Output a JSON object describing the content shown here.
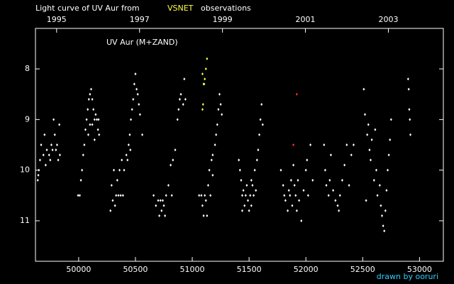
{
  "chart_data": {
    "type": "scatter",
    "title": "Light curve of UV Aur from",
    "title_highlight": "VSNET",
    "title_end": "observations",
    "annotation": "UV Aur (M+ZAND)",
    "credit": "drawn by ooruri",
    "xlim": [
      49620,
      53210
    ],
    "ylim": [
      7.2,
      11.8
    ],
    "y_inverted": true,
    "xticks": [
      50000,
      50500,
      51000,
      51500,
      52000,
      52500,
      53000
    ],
    "yticks": [
      8,
      9,
      10,
      11
    ],
    "x2ticks": [
      {
        "value": 49806,
        "label": "1995"
      },
      {
        "value": 50536,
        "label": "1997"
      },
      {
        "value": 51266,
        "label": "1999"
      },
      {
        "value": 51996,
        "label": "2001"
      },
      {
        "value": 52726,
        "label": "2003"
      }
    ],
    "series": [
      {
        "color": "#ffffff",
        "x": [
          49640,
          49650,
          49660,
          49670,
          49690,
          49700,
          49720,
          49740,
          49760,
          49780,
          49790,
          49800,
          49820,
          49830,
          49835,
          49645,
          49710,
          49750,
          49770,
          49810,
          49995,
          50010,
          50020,
          50030,
          50040,
          50050,
          50060,
          50070,
          50080,
          50090,
          50100,
          50110,
          50120,
          50130,
          50140,
          50150,
          50160,
          50170,
          50175,
          50180,
          50100,
          50120,
          50140,
          50085,
          50280,
          50290,
          50300,
          50310,
          50320,
          50330,
          50340,
          50350,
          50360,
          50370,
          50380,
          50390,
          50400,
          50420,
          50440,
          50450,
          50460,
          50470,
          50480,
          50490,
          50500,
          50510,
          50520,
          50530,
          50540,
          50560,
          50430,
          50455,
          50660,
          50680,
          50700,
          50710,
          50720,
          50730,
          50740,
          50750,
          50770,
          50790,
          50810,
          50830,
          50850,
          50870,
          50880,
          50890,
          50900,
          50920,
          50930,
          50940,
          50820,
          50760,
          51060,
          51080,
          51090,
          51100,
          51110,
          51120,
          51130,
          51140,
          51150,
          51160,
          51170,
          51180,
          51200,
          51210,
          51220,
          51230,
          51240,
          51250,
          51260,
          51180,
          51410,
          51420,
          51430,
          51440,
          51450,
          51460,
          51470,
          51480,
          51490,
          51500,
          51510,
          51520,
          51530,
          51540,
          51550,
          51560,
          51570,
          51580,
          51590,
          51600,
          51610,
          51620,
          51440,
          51520,
          51780,
          51800,
          51810,
          51820,
          51840,
          51850,
          51860,
          51870,
          51880,
          51900,
          51910,
          51920,
          51930,
          51940,
          51960,
          51980,
          52000,
          52010,
          52020,
          52040,
          52060,
          51890,
          52160,
          52170,
          52180,
          52200,
          52210,
          52220,
          52240,
          52260,
          52280,
          52290,
          52300,
          52320,
          52340,
          52360,
          52380,
          52400,
          52420,
          52510,
          52520,
          52540,
          52550,
          52560,
          52570,
          52580,
          52600,
          52620,
          52630,
          52650,
          52660,
          52670,
          52680,
          52690,
          52700,
          52710,
          52720,
          52730,
          52740,
          52750,
          52530,
          52610,
          52900,
          52910,
          52920,
          52905,
          52915
        ],
        "values": [
          10.2,
          10.0,
          9.8,
          9.5,
          9.7,
          9.3,
          9.6,
          9.7,
          9.5,
          9.0,
          9.3,
          9.6,
          9.8,
          9.1,
          9.7,
          10.1,
          9.9,
          9.8,
          9.6,
          9.5,
          10.5,
          10.5,
          10.2,
          10.0,
          9.7,
          9.5,
          9.2,
          9.0,
          8.8,
          8.6,
          8.5,
          8.4,
          8.6,
          8.8,
          9.0,
          8.9,
          9.0,
          9.2,
          9.0,
          9.3,
          9.1,
          9.1,
          9.4,
          9.3,
          10.8,
          10.3,
          10.6,
          10.0,
          10.7,
          10.5,
          10.2,
          10.5,
          10.0,
          10.5,
          9.8,
          10.5,
          10.0,
          9.7,
          9.5,
          9.3,
          9.0,
          8.8,
          8.6,
          8.3,
          8.1,
          8.4,
          8.5,
          8.7,
          8.9,
          9.3,
          9.8,
          9.6,
          10.5,
          10.7,
          10.6,
          10.9,
          10.6,
          10.8,
          10.6,
          10.7,
          10.5,
          10.3,
          9.9,
          9.8,
          9.6,
          9.0,
          8.8,
          8.6,
          8.5,
          8.7,
          8.2,
          8.6,
          10.5,
          10.9,
          10.5,
          10.5,
          10.7,
          10.9,
          10.5,
          10.6,
          10.9,
          10.3,
          10.0,
          10.5,
          9.8,
          9.7,
          9.5,
          9.3,
          9.1,
          8.8,
          8.5,
          8.7,
          8.9,
          10.1,
          9.8,
          10.0,
          10.2,
          10.5,
          10.4,
          10.7,
          10.5,
          10.3,
          10.6,
          10.8,
          10.5,
          10.7,
          10.3,
          10.5,
          10.0,
          10.4,
          9.8,
          9.6,
          9.3,
          9.0,
          8.7,
          9.1,
          10.8,
          10.2,
          10.0,
          10.3,
          10.5,
          10.6,
          10.8,
          10.4,
          10.5,
          10.2,
          10.7,
          10.3,
          10.5,
          10.8,
          10.2,
          10.6,
          11.0,
          10.4,
          10.0,
          9.8,
          10.5,
          9.5,
          10.2,
          9.9,
          9.5,
          10.0,
          10.3,
          10.5,
          10.2,
          9.7,
          10.4,
          10.6,
          10.7,
          10.8,
          10.5,
          10.2,
          9.9,
          9.5,
          10.3,
          9.7,
          9.5,
          8.4,
          8.9,
          9.3,
          9.1,
          9.6,
          9.8,
          9.4,
          10.2,
          10.0,
          10.5,
          10.3,
          10.7,
          10.9,
          11.1,
          11.2,
          10.8,
          10.4,
          10.0,
          9.7,
          9.4,
          9.0,
          10.6,
          9.2,
          8.2,
          8.8,
          9.3,
          8.4,
          9.0
        ]
      },
      {
        "color": "#ffff44",
        "x": [
          51090,
          51100,
          51110,
          51120,
          51130,
          51090,
          51095,
          51105
        ],
        "values": [
          8.1,
          8.3,
          8.2,
          8.0,
          7.8,
          8.8,
          8.7,
          8.3
        ]
      },
      {
        "color": "#ff3030",
        "x": [
          51920,
          51890
        ],
        "values": [
          8.5,
          9.5
        ]
      }
    ]
  }
}
